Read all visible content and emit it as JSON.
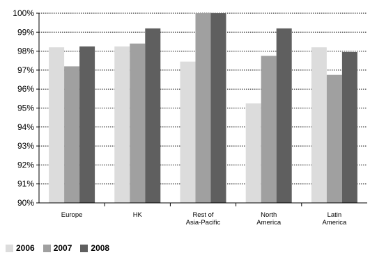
{
  "chart_data": {
    "type": "bar",
    "categories": [
      [
        "Europe"
      ],
      [
        "HK"
      ],
      [
        "Rest of",
        "Asia-Pacific"
      ],
      [
        "North",
        "America"
      ],
      [
        "Latin",
        "America"
      ]
    ],
    "series": [
      {
        "name": "2006",
        "color": "#dcdcdc",
        "values": [
          98.2,
          98.25,
          97.45,
          95.25,
          98.2
        ]
      },
      {
        "name": "2007",
        "color": "#a0a0a0",
        "values": [
          97.2,
          98.4,
          100.0,
          97.75,
          96.75
        ]
      },
      {
        "name": "2008",
        "color": "#5f5f5f",
        "values": [
          98.25,
          99.2,
          100.0,
          99.2,
          97.95
        ]
      }
    ],
    "ylim": [
      90,
      100
    ],
    "yticks": [
      "90%",
      "91%",
      "92%",
      "93%",
      "94%",
      "95%",
      "96%",
      "97%",
      "98%",
      "99%",
      "100%"
    ],
    "grid": true,
    "legend": "bottom-left"
  }
}
